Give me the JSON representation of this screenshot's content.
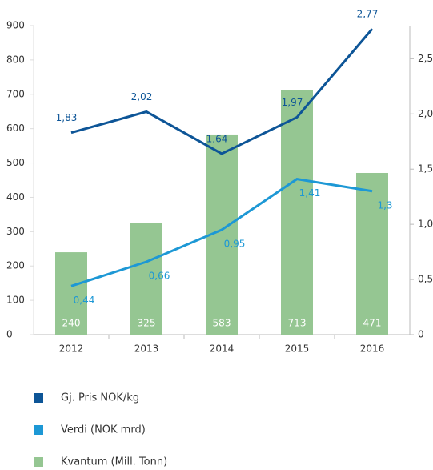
{
  "chart_data": {
    "type": "combo",
    "categories": [
      "2012",
      "2013",
      "2014",
      "2015",
      "2016"
    ],
    "series": [
      {
        "name": "Gj. Pris NOK/kg",
        "type": "line",
        "axis": "y2",
        "color": "#0d5597",
        "values": [
          1.83,
          2.02,
          1.64,
          1.97,
          2.77
        ],
        "value_labels": [
          "1,83",
          "2,02",
          "1,64",
          "1,97",
          "2,77"
        ]
      },
      {
        "name": "Verdi (NOK mrd)",
        "type": "line",
        "axis": "y2",
        "color": "#1d98d5",
        "values": [
          0.44,
          0.66,
          0.95,
          1.41,
          1.3
        ],
        "value_labels": [
          "0,44",
          "0,66",
          "0,95",
          "1,41",
          "1,3"
        ]
      },
      {
        "name": "Kvantum (Mill. Tonn)",
        "type": "bar",
        "color": "#95c692",
        "values": [
          240,
          325,
          583,
          713,
          471
        ]
      }
    ],
    "ylim": [
      0,
      900
    ],
    "yticks": [
      0,
      100,
      200,
      300,
      400,
      500,
      600,
      700,
      800,
      900
    ],
    "y2lim": [
      0,
      2.8
    ],
    "y2ticks": [
      0,
      {
        "value": 0.5,
        "label": "0,5"
      },
      {
        "value": 1,
        "label": "1,0"
      },
      {
        "value": 1.5,
        "label": "1,5"
      },
      {
        "value": 2,
        "label": "2,0"
      },
      {
        "value": 2.5,
        "label": "2,5"
      }
    ],
    "legend": "bottom"
  }
}
